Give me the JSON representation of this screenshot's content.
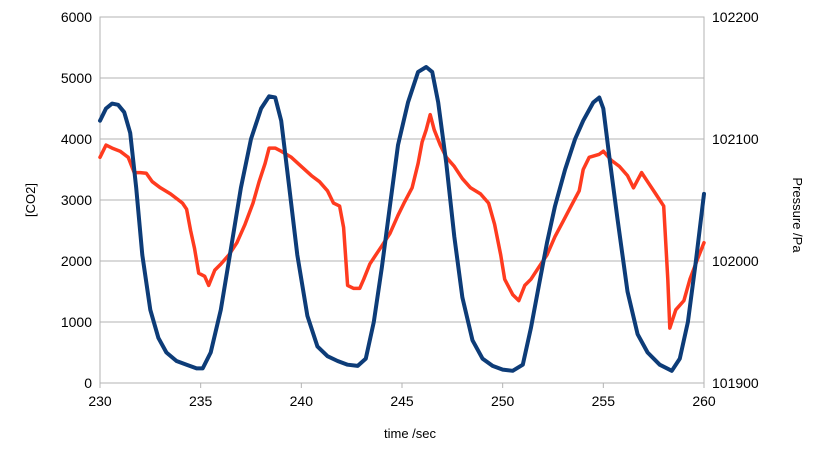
{
  "chart_data": {
    "type": "line",
    "title": "",
    "xlabel": "time /sec",
    "ylabel_left": "[CO2]",
    "ylabel_right": "Pressure /Pa",
    "xlim": [
      230,
      260
    ],
    "ylim_left": [
      0,
      6000
    ],
    "ylim_right": [
      101900,
      102200
    ],
    "x_ticks": [
      230,
      235,
      240,
      245,
      250,
      255,
      260
    ],
    "y_left_ticks": [
      0,
      1000,
      2000,
      3000,
      4000,
      5000,
      6000
    ],
    "y_right_ticks": [
      101900,
      102000,
      102100,
      102200
    ],
    "grid": true,
    "legend": "none",
    "series": [
      {
        "axis": "left",
        "color": "#ff3b1f",
        "points": [
          [
            230.0,
            3700
          ],
          [
            230.3,
            3900
          ],
          [
            230.6,
            3850
          ],
          [
            231.0,
            3800
          ],
          [
            231.4,
            3700
          ],
          [
            231.7,
            3450
          ],
          [
            232.0,
            3450
          ],
          [
            232.3,
            3440
          ],
          [
            232.6,
            3300
          ],
          [
            233.0,
            3200
          ],
          [
            233.5,
            3100
          ],
          [
            233.9,
            3000
          ],
          [
            234.1,
            2950
          ],
          [
            234.3,
            2850
          ],
          [
            234.5,
            2500
          ],
          [
            234.7,
            2200
          ],
          [
            234.9,
            1800
          ],
          [
            235.2,
            1750
          ],
          [
            235.4,
            1600
          ],
          [
            235.7,
            1850
          ],
          [
            236.0,
            1950
          ],
          [
            236.4,
            2100
          ],
          [
            236.8,
            2300
          ],
          [
            237.2,
            2600
          ],
          [
            237.6,
            2950
          ],
          [
            237.9,
            3300
          ],
          [
            238.2,
            3600
          ],
          [
            238.4,
            3850
          ],
          [
            238.7,
            3850
          ],
          [
            239.0,
            3800
          ],
          [
            239.5,
            3700
          ],
          [
            240.0,
            3550
          ],
          [
            240.5,
            3400
          ],
          [
            240.9,
            3300
          ],
          [
            241.3,
            3150
          ],
          [
            241.6,
            2950
          ],
          [
            241.9,
            2900
          ],
          [
            242.1,
            2550
          ],
          [
            242.3,
            1600
          ],
          [
            242.6,
            1550
          ],
          [
            242.9,
            1550
          ],
          [
            243.1,
            1700
          ],
          [
            243.4,
            1950
          ],
          [
            243.7,
            2100
          ],
          [
            244.0,
            2250
          ],
          [
            244.4,
            2450
          ],
          [
            244.8,
            2750
          ],
          [
            245.1,
            2950
          ],
          [
            245.5,
            3200
          ],
          [
            245.8,
            3600
          ],
          [
            246.0,
            3950
          ],
          [
            246.2,
            4150
          ],
          [
            246.4,
            4400
          ],
          [
            246.6,
            4150
          ],
          [
            246.9,
            3900
          ],
          [
            247.2,
            3700
          ],
          [
            247.6,
            3550
          ],
          [
            248.0,
            3350
          ],
          [
            248.4,
            3200
          ],
          [
            248.9,
            3100
          ],
          [
            249.3,
            2950
          ],
          [
            249.6,
            2600
          ],
          [
            249.9,
            2100
          ],
          [
            250.1,
            1700
          ],
          [
            250.5,
            1450
          ],
          [
            250.8,
            1350
          ],
          [
            251.1,
            1600
          ],
          [
            251.4,
            1700
          ],
          [
            251.8,
            1900
          ],
          [
            252.2,
            2100
          ],
          [
            252.6,
            2400
          ],
          [
            253.0,
            2650
          ],
          [
            253.4,
            2900
          ],
          [
            253.8,
            3150
          ],
          [
            254.0,
            3500
          ],
          [
            254.3,
            3700
          ],
          [
            254.8,
            3750
          ],
          [
            255.0,
            3800
          ],
          [
            255.4,
            3650
          ],
          [
            255.8,
            3550
          ],
          [
            256.2,
            3400
          ],
          [
            256.5,
            3200
          ],
          [
            256.9,
            3450
          ],
          [
            257.2,
            3300
          ],
          [
            257.6,
            3100
          ],
          [
            258.0,
            2900
          ],
          [
            258.2,
            1700
          ],
          [
            258.3,
            900
          ],
          [
            258.6,
            1200
          ],
          [
            259.0,
            1350
          ],
          [
            259.3,
            1700
          ],
          [
            259.7,
            2050
          ],
          [
            260.0,
            2300
          ]
        ]
      },
      {
        "axis": "right",
        "color": "#0d3c78",
        "points": [
          [
            230.0,
            102115
          ],
          [
            230.3,
            102125
          ],
          [
            230.6,
            102129
          ],
          [
            230.9,
            102128
          ],
          [
            231.2,
            102122
          ],
          [
            231.5,
            102105
          ],
          [
            231.8,
            102060
          ],
          [
            232.1,
            102005
          ],
          [
            232.5,
            101960
          ],
          [
            232.9,
            101937
          ],
          [
            233.3,
            101925
          ],
          [
            233.8,
            101918
          ],
          [
            234.3,
            101915
          ],
          [
            234.8,
            101912
          ],
          [
            235.1,
            101912
          ],
          [
            235.5,
            101925
          ],
          [
            236.0,
            101960
          ],
          [
            236.5,
            102010
          ],
          [
            237.0,
            102060
          ],
          [
            237.5,
            102100
          ],
          [
            238.0,
            102125
          ],
          [
            238.4,
            102135
          ],
          [
            238.7,
            102134
          ],
          [
            239.0,
            102115
          ],
          [
            239.4,
            102060
          ],
          [
            239.8,
            102005
          ],
          [
            240.3,
            101955
          ],
          [
            240.8,
            101930
          ],
          [
            241.3,
            101922
          ],
          [
            241.8,
            101918
          ],
          [
            242.3,
            101915
          ],
          [
            242.8,
            101914
          ],
          [
            243.2,
            101920
          ],
          [
            243.6,
            101950
          ],
          [
            244.0,
            101995
          ],
          [
            244.4,
            102045
          ],
          [
            244.8,
            102095
          ],
          [
            245.3,
            102130
          ],
          [
            245.8,
            102155
          ],
          [
            246.2,
            102159
          ],
          [
            246.5,
            102155
          ],
          [
            246.8,
            102130
          ],
          [
            247.2,
            102080
          ],
          [
            247.6,
            102020
          ],
          [
            248.0,
            101970
          ],
          [
            248.5,
            101935
          ],
          [
            249.0,
            101920
          ],
          [
            249.5,
            101914
          ],
          [
            250.0,
            101911
          ],
          [
            250.5,
            101910
          ],
          [
            251.0,
            101915
          ],
          [
            251.4,
            101945
          ],
          [
            251.8,
            101980
          ],
          [
            252.2,
            102015
          ],
          [
            252.6,
            102045
          ],
          [
            253.1,
            102075
          ],
          [
            253.6,
            102100
          ],
          [
            254.0,
            102115
          ],
          [
            254.5,
            102130
          ],
          [
            254.8,
            102134
          ],
          [
            255.0,
            102125
          ],
          [
            255.3,
            102085
          ],
          [
            255.7,
            102035
          ],
          [
            256.2,
            101975
          ],
          [
            256.7,
            101940
          ],
          [
            257.2,
            101925
          ],
          [
            257.8,
            101915
          ],
          [
            258.4,
            101910
          ],
          [
            258.8,
            101920
          ],
          [
            259.2,
            101950
          ],
          [
            259.6,
            102000
          ],
          [
            260.0,
            102055
          ]
        ]
      }
    ]
  }
}
